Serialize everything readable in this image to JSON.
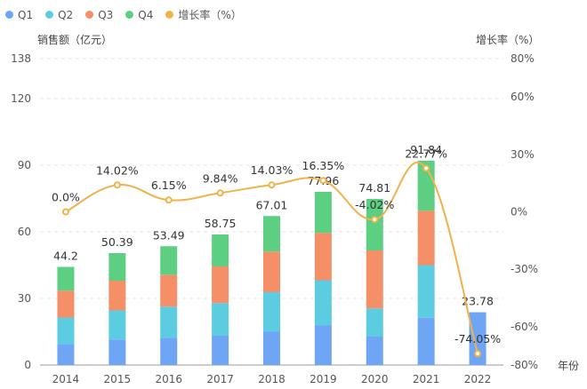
{
  "chart_data": {
    "type": "bar",
    "categories": [
      "2014",
      "2015",
      "2016",
      "2017",
      "2018",
      "2019",
      "2020",
      "2021",
      "2022"
    ],
    "series": [
      {
        "name": "Q1",
        "color": "#6ea6f5",
        "values": [
          9.5,
          11.5,
          12.3,
          13.2,
          15.0,
          17.8,
          12.8,
          21.3,
          23.78
        ]
      },
      {
        "name": "Q2",
        "color": "#5ccde0",
        "values": [
          11.9,
          13.1,
          14.0,
          14.7,
          17.8,
          20.4,
          12.7,
          23.7,
          0
        ]
      },
      {
        "name": "Q3",
        "color": "#f58f67",
        "values": [
          12.1,
          13.4,
          14.4,
          16.5,
          18.3,
          21.3,
          26.1,
          24.5,
          0
        ]
      },
      {
        "name": "Q4",
        "color": "#5ccf82",
        "values": [
          10.7,
          12.4,
          12.8,
          14.4,
          16.0,
          18.5,
          23.2,
          22.5,
          0
        ]
      }
    ],
    "totals": [
      "44.2",
      "50.39",
      "53.49",
      "58.75",
      "67.01",
      "77.96",
      "74.81",
      "91.84",
      "23.78"
    ],
    "growth": {
      "name": "增长率（%）",
      "color": "#f0b24a",
      "values": [
        0.0,
        14.02,
        6.15,
        9.84,
        14.03,
        16.35,
        -4.02,
        22.77,
        -74.05
      ],
      "labels": [
        "0.0%",
        "14.02%",
        "6.15%",
        "9.84%",
        "14.03%",
        "16.35%",
        "-4.02%",
        "22.77%",
        "-74.05%"
      ]
    },
    "ylabel_left": "销售额（亿元）",
    "ylabel_right": "增长率（%）",
    "xlabel": "年份",
    "ylim_left": [
      0,
      138
    ],
    "yticks_left": [
      0,
      30,
      60,
      90,
      120,
      138
    ],
    "ylim_right": [
      -80,
      80
    ],
    "yticks_right": [
      "80%",
      "60%",
      "30%",
      "0%",
      "-30%",
      "-60%",
      "-80%"
    ],
    "yticks_right_values": [
      80,
      60,
      30,
      0,
      -30,
      -60,
      -80
    ],
    "grid": true,
    "legend_position": "top-left"
  }
}
